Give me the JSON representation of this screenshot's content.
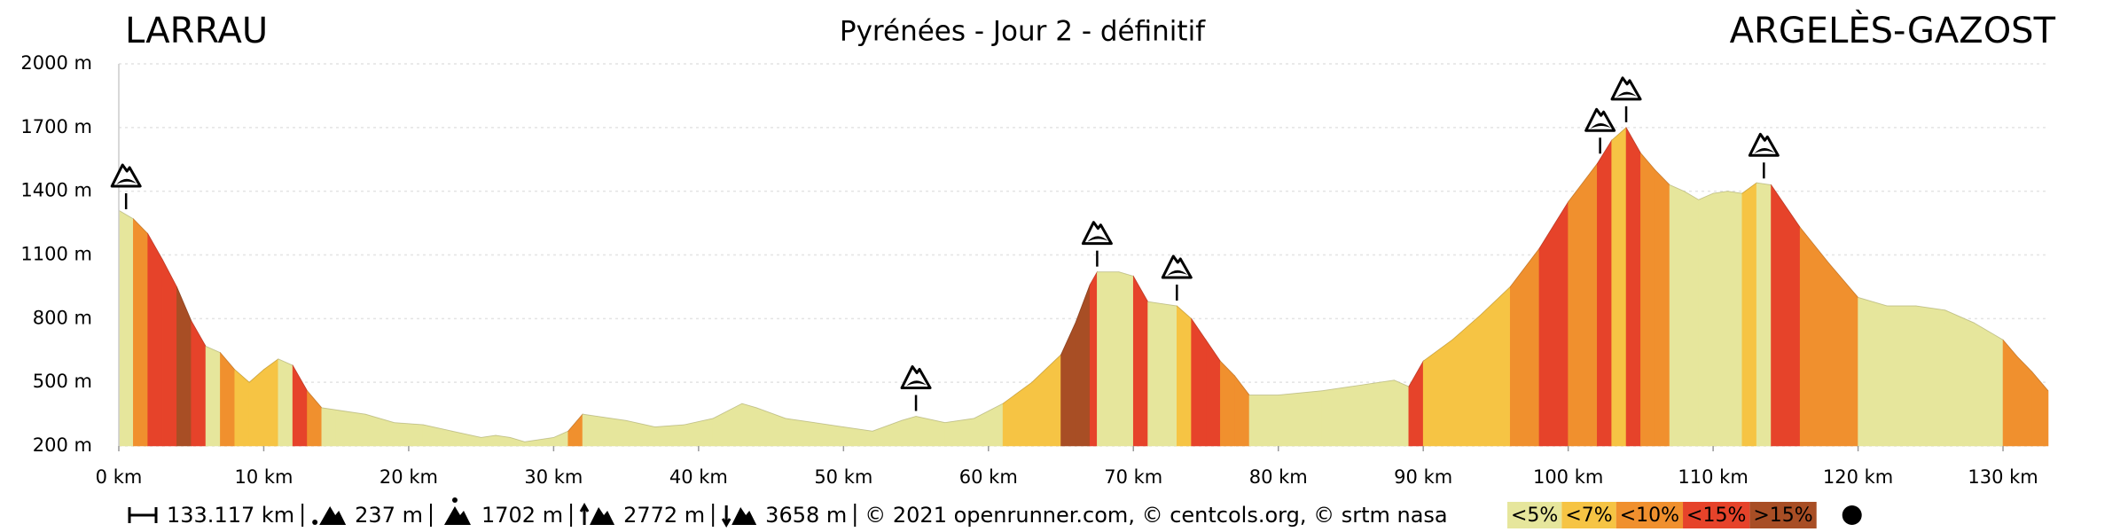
{
  "chart_data": {
    "type": "area",
    "title": "Pyrénées - Jour 2 - définitif",
    "start": "LARRAU",
    "end": "ARGELÈS-GAZOST",
    "x": [
      0,
      1,
      2,
      3,
      4,
      5,
      6,
      7,
      8,
      9,
      10,
      11,
      12,
      13,
      14,
      15,
      17,
      19,
      21,
      23,
      25,
      26,
      27,
      28,
      30,
      31,
      32,
      33,
      35,
      37,
      39,
      41,
      43,
      44,
      46,
      48,
      50,
      52,
      54,
      55,
      57,
      59,
      61,
      63,
      65,
      66,
      67,
      67.5,
      69,
      70,
      71,
      72,
      73,
      74,
      75,
      76,
      77,
      78,
      80,
      83,
      86,
      88,
      89,
      90,
      92,
      94,
      96,
      98,
      100,
      102,
      103,
      104,
      105,
      106,
      107,
      108,
      109,
      110,
      111,
      112,
      113,
      114,
      116,
      118,
      120,
      122,
      124,
      126,
      128,
      130,
      131,
      132,
      133.117
    ],
    "values": [
      1310,
      1270,
      1200,
      1080,
      950,
      790,
      670,
      640,
      560,
      500,
      560,
      610,
      580,
      460,
      380,
      370,
      350,
      310,
      300,
      270,
      240,
      250,
      240,
      220,
      240,
      270,
      350,
      340,
      320,
      290,
      300,
      330,
      400,
      380,
      330,
      310,
      290,
      270,
      320,
      340,
      310,
      330,
      400,
      500,
      630,
      780,
      960,
      1020,
      1020,
      1000,
      880,
      870,
      860,
      800,
      700,
      600,
      530,
      440,
      440,
      460,
      490,
      510,
      480,
      600,
      700,
      820,
      950,
      1130,
      1350,
      1530,
      1640,
      1700,
      1580,
      1500,
      1430,
      1400,
      1360,
      1390,
      1400,
      1390,
      1440,
      1430,
      1230,
      1060,
      900,
      860,
      860,
      840,
      780,
      700,
      620,
      550,
      460
    ],
    "xlim": [
      0,
      133.117
    ],
    "ylim": [
      200,
      2000
    ],
    "xticks": [
      {
        "value": 0,
        "label": "0 km"
      },
      {
        "value": 10,
        "label": "10 km"
      },
      {
        "value": 20,
        "label": "20 km"
      },
      {
        "value": 30,
        "label": "30 km"
      },
      {
        "value": 40,
        "label": "40 km"
      },
      {
        "value": 50,
        "label": "50 km"
      },
      {
        "value": 60,
        "label": "60 km"
      },
      {
        "value": 70,
        "label": "70 km"
      },
      {
        "value": 80,
        "label": "80 km"
      },
      {
        "value": 90,
        "label": "90 km"
      },
      {
        "value": 100,
        "label": "100 km"
      },
      {
        "value": 110,
        "label": "110 km"
      },
      {
        "value": 120,
        "label": "120 km"
      },
      {
        "value": 130,
        "label": "130 km"
      }
    ],
    "yticks": [
      {
        "value": 200,
        "label": "200 m"
      },
      {
        "value": 500,
        "label": "500 m"
      },
      {
        "value": 800,
        "label": "800 m"
      },
      {
        "value": 1100,
        "label": "1100 m"
      },
      {
        "value": 1400,
        "label": "1400 m"
      },
      {
        "value": 1700,
        "label": "1700 m"
      },
      {
        "value": 2000,
        "label": "2000 m"
      }
    ],
    "grid": true,
    "cols": [
      0.5,
      55,
      67.5,
      73,
      102.2,
      104,
      113.5
    ],
    "legend": [
      {
        "label": "<5%",
        "color": "#e6e69c"
      },
      {
        "label": "<7%",
        "color": "#f6c444"
      },
      {
        "label": "<10%",
        "color": "#f0902e"
      },
      {
        "label": "<15%",
        "color": "#e6432a"
      },
      {
        "label": ">15%",
        "color": "#a84e25"
      }
    ],
    "stats": [
      "133.117 km",
      "237 m",
      "1702 m",
      "2772 m",
      "3658 m"
    ],
    "credits": "© 2021 openrunner.com, © centcols.org, © srtm nasa"
  }
}
